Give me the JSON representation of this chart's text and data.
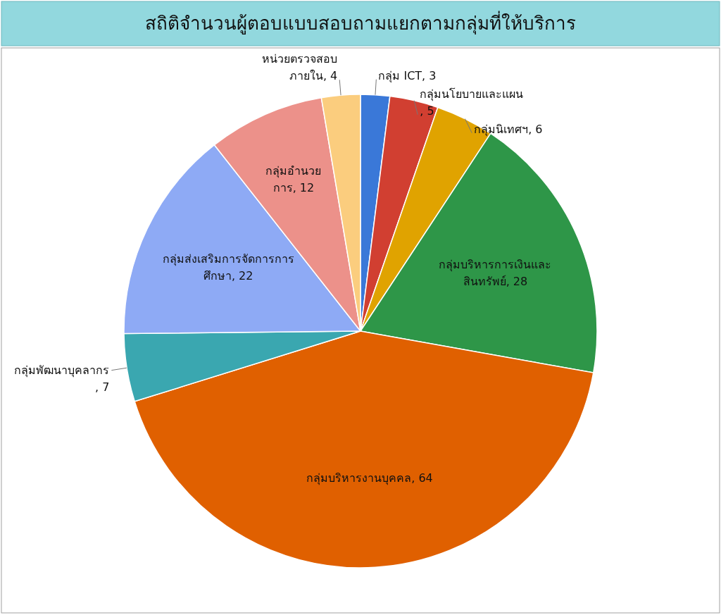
{
  "chart_data": {
    "type": "pie",
    "title": "สถิติจำนวนผู้ตอบแบบสอบถามแยกตามกลุ่มที่ให้บริการ",
    "categories": [
      "กลุ่ม ICT",
      "กลุ่มนโยบายและแผน",
      "กลุ่มนิเทศฯ",
      "กลุ่มบริหารการเงินและสินทรัพย์",
      "กลุ่มบริหารงานบุคคล",
      "กลุ่มพัฒนาบุคลากร",
      "กลุ่มส่งเสริมการจัดการการศึกษา",
      "กลุ่มอำนวยการ",
      "หน่วยตรวจสอบภายใน"
    ],
    "values": [
      3,
      5,
      6,
      28,
      64,
      7,
      22,
      12,
      4
    ],
    "colors": [
      "#3a78d8",
      "#d13f31",
      "#e0a300",
      "#2e9648",
      "#e06000",
      "#3aa7b0",
      "#8eaaf5",
      "#ec918a",
      "#fbcd7e"
    ],
    "value_labels": [
      ", 3",
      ", 5",
      ", 6",
      ", 28",
      ", 64",
      ", 7",
      ", 22",
      ", 12",
      ", 4"
    ]
  }
}
